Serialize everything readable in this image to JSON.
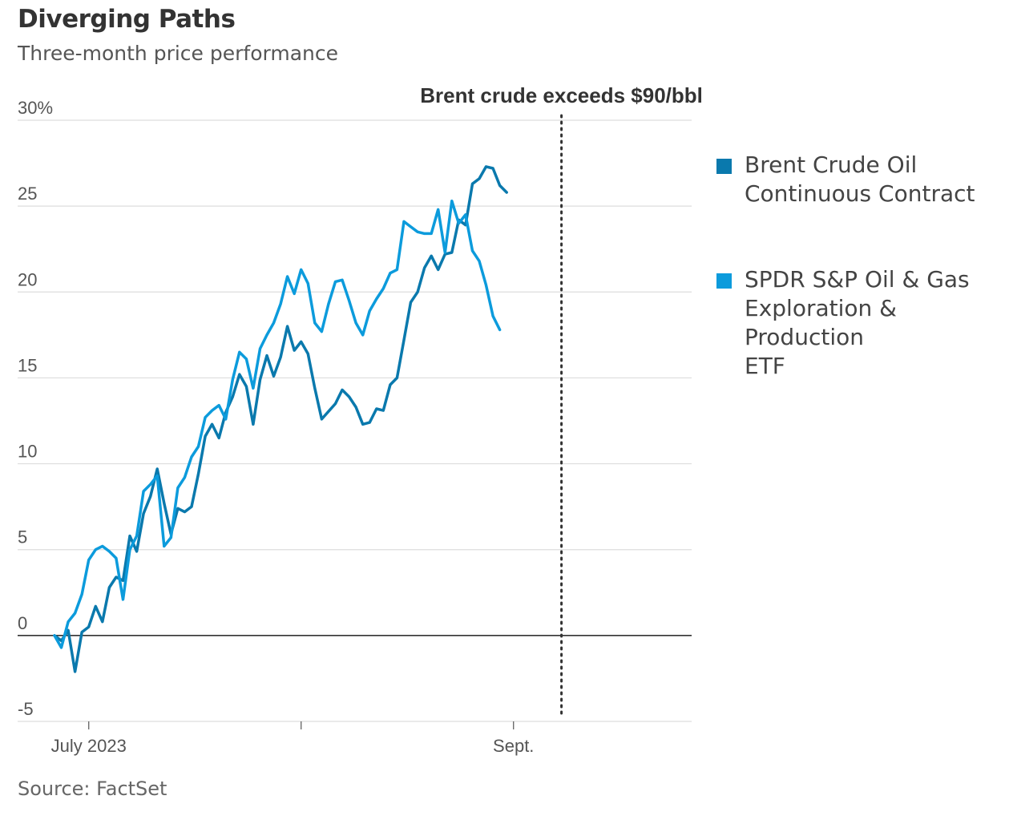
{
  "title": "Diverging Paths",
  "subtitle": "Three-month price performance",
  "source": "Source: FactSet",
  "colors": {
    "brent": "#0a79ad",
    "etf": "#0c9bdc",
    "grid": "#dddddd",
    "zero": "#333333",
    "annotation": "#333333"
  },
  "chart_data": {
    "type": "line",
    "title": "Diverging Paths",
    "subtitle": "Three-month price performance",
    "xlabel": "",
    "ylabel": "",
    "ylim": [
      -5,
      30
    ],
    "yticks": [
      30,
      25,
      20,
      15,
      10,
      5,
      0,
      -5
    ],
    "ytick_labels": [
      "30%",
      "25",
      "20",
      "15",
      "10",
      "5",
      "0",
      "-5"
    ],
    "x_range": [
      "2023-06-26",
      "2023-09-27"
    ],
    "xticks": [
      {
        "date": "2023-07-01",
        "label": "July 2023"
      },
      {
        "date": "2023-08-01",
        "label": ""
      },
      {
        "date": "2023-09-01",
        "label": "Sept."
      }
    ],
    "grid": true,
    "legend_position": "right",
    "annotation": {
      "date": "2023-09-08",
      "label": "Brent crude exceeds $90/bbl"
    },
    "series": [
      {
        "name": "Brent Crude Oil Continuous Contract",
        "color_key": "brent",
        "points": [
          [
            "2023-06-26",
            0.0
          ],
          [
            "2023-06-27",
            -0.3
          ],
          [
            "2023-06-28",
            0.3
          ],
          [
            "2023-06-29",
            -2.1
          ],
          [
            "2023-06-30",
            0.2
          ],
          [
            "2023-07-01",
            0.5
          ],
          [
            "2023-07-02",
            1.7
          ],
          [
            "2023-07-03",
            0.8
          ],
          [
            "2023-07-04",
            2.8
          ],
          [
            "2023-07-05",
            3.4
          ],
          [
            "2023-07-06",
            3.2
          ],
          [
            "2023-07-07",
            5.8
          ],
          [
            "2023-07-08",
            4.9
          ],
          [
            "2023-07-09",
            7.1
          ],
          [
            "2023-07-10",
            8.1
          ],
          [
            "2023-07-11",
            9.7
          ],
          [
            "2023-07-12",
            7.7
          ],
          [
            "2023-07-13",
            5.9
          ],
          [
            "2023-07-14",
            7.4
          ],
          [
            "2023-07-15",
            7.2
          ],
          [
            "2023-07-16",
            7.5
          ],
          [
            "2023-07-17",
            9.4
          ],
          [
            "2023-07-18",
            11.6
          ],
          [
            "2023-07-19",
            12.3
          ],
          [
            "2023-07-20",
            11.5
          ],
          [
            "2023-07-21",
            13.0
          ],
          [
            "2023-07-22",
            13.9
          ],
          [
            "2023-07-23",
            15.2
          ],
          [
            "2023-07-24",
            14.5
          ],
          [
            "2023-07-25",
            12.3
          ],
          [
            "2023-07-26",
            14.9
          ],
          [
            "2023-07-27",
            16.3
          ],
          [
            "2023-07-28",
            15.1
          ],
          [
            "2023-07-29",
            16.2
          ],
          [
            "2023-07-30",
            18.0
          ],
          [
            "2023-07-31",
            16.6
          ],
          [
            "2023-08-01",
            17.1
          ],
          [
            "2023-08-02",
            16.4
          ],
          [
            "2023-08-03",
            14.4
          ],
          [
            "2023-08-04",
            12.6
          ],
          [
            "2023-08-06",
            13.5
          ],
          [
            "2023-08-07",
            14.3
          ],
          [
            "2023-08-08",
            13.9
          ],
          [
            "2023-08-09",
            13.3
          ],
          [
            "2023-08-10",
            12.3
          ],
          [
            "2023-08-11",
            12.4
          ],
          [
            "2023-08-12",
            13.2
          ],
          [
            "2023-08-13",
            13.1
          ],
          [
            "2023-08-14",
            14.6
          ],
          [
            "2023-08-15",
            15.0
          ],
          [
            "2023-08-16",
            17.2
          ],
          [
            "2023-08-17",
            19.4
          ],
          [
            "2023-08-18",
            20.0
          ],
          [
            "2023-08-19",
            21.4
          ],
          [
            "2023-08-20",
            22.1
          ],
          [
            "2023-08-21",
            21.3
          ],
          [
            "2023-08-22",
            22.2
          ],
          [
            "2023-08-23",
            22.3
          ],
          [
            "2023-08-24",
            24.2
          ],
          [
            "2023-08-25",
            23.9
          ],
          [
            "2023-08-26",
            26.3
          ],
          [
            "2023-08-27",
            26.6
          ],
          [
            "2023-08-28",
            27.3
          ],
          [
            "2023-08-29",
            27.2
          ],
          [
            "2023-08-30",
            26.2
          ],
          [
            "2023-08-31",
            25.8
          ]
        ]
      },
      {
        "name": "SPDR S&P Oil & Gas Exploration & Production ETF",
        "color_key": "etf",
        "points": [
          [
            "2023-06-26",
            0.0
          ],
          [
            "2023-06-27",
            -0.7
          ],
          [
            "2023-06-28",
            0.8
          ],
          [
            "2023-06-29",
            1.3
          ],
          [
            "2023-06-30",
            2.4
          ],
          [
            "2023-07-01",
            4.4
          ],
          [
            "2023-07-02",
            5.0
          ],
          [
            "2023-07-03",
            5.2
          ],
          [
            "2023-07-04",
            4.9
          ],
          [
            "2023-07-05",
            4.5
          ],
          [
            "2023-07-06",
            2.1
          ],
          [
            "2023-07-07",
            5.0
          ],
          [
            "2023-07-08",
            5.8
          ],
          [
            "2023-07-09",
            8.4
          ],
          [
            "2023-07-10",
            8.8
          ],
          [
            "2023-07-11",
            9.3
          ],
          [
            "2023-07-12",
            5.2
          ],
          [
            "2023-07-13",
            5.7
          ],
          [
            "2023-07-14",
            8.6
          ],
          [
            "2023-07-15",
            9.2
          ],
          [
            "2023-07-16",
            10.4
          ],
          [
            "2023-07-17",
            11.0
          ],
          [
            "2023-07-18",
            12.7
          ],
          [
            "2023-07-19",
            13.1
          ],
          [
            "2023-07-20",
            13.4
          ],
          [
            "2023-07-21",
            12.6
          ],
          [
            "2023-07-22",
            14.9
          ],
          [
            "2023-07-23",
            16.5
          ],
          [
            "2023-07-24",
            16.1
          ],
          [
            "2023-07-25",
            14.4
          ],
          [
            "2023-07-26",
            16.7
          ],
          [
            "2023-07-27",
            17.5
          ],
          [
            "2023-07-28",
            18.2
          ],
          [
            "2023-07-29",
            19.3
          ],
          [
            "2023-07-30",
            20.9
          ],
          [
            "2023-07-31",
            19.9
          ],
          [
            "2023-08-01",
            21.3
          ],
          [
            "2023-08-02",
            20.5
          ],
          [
            "2023-08-03",
            18.2
          ],
          [
            "2023-08-04",
            17.7
          ],
          [
            "2023-08-05",
            19.3
          ],
          [
            "2023-08-06",
            20.6
          ],
          [
            "2023-08-07",
            20.7
          ],
          [
            "2023-08-08",
            19.5
          ],
          [
            "2023-08-09",
            18.2
          ],
          [
            "2023-08-10",
            17.5
          ],
          [
            "2023-08-11",
            18.9
          ],
          [
            "2023-08-12",
            19.6
          ],
          [
            "2023-08-13",
            20.2
          ],
          [
            "2023-08-14",
            21.1
          ],
          [
            "2023-08-15",
            21.3
          ],
          [
            "2023-08-16",
            24.1
          ],
          [
            "2023-08-17",
            23.8
          ],
          [
            "2023-08-18",
            23.5
          ],
          [
            "2023-08-19",
            23.4
          ],
          [
            "2023-08-20",
            23.4
          ],
          [
            "2023-08-21",
            24.8
          ],
          [
            "2023-08-22",
            22.3
          ],
          [
            "2023-08-23",
            25.3
          ],
          [
            "2023-08-24",
            24.0
          ],
          [
            "2023-08-25",
            24.5
          ],
          [
            "2023-08-26",
            22.4
          ],
          [
            "2023-08-27",
            21.8
          ],
          [
            "2023-08-28",
            20.4
          ],
          [
            "2023-08-29",
            18.6
          ],
          [
            "2023-08-30",
            17.8
          ]
        ],
        "dotted_gaps": [
          [
            "2023-07-03",
            "2023-07-05"
          ],
          [
            "2023-08-16",
            "2023-08-18"
          ]
        ]
      }
    ]
  },
  "legend": [
    {
      "lines": [
        "Brent Crude Oil",
        "Continuous Contract"
      ],
      "color_key": "brent"
    },
    {
      "lines": [
        "SPDR S&P Oil & Gas",
        "Exploration & Production",
        "ETF"
      ],
      "color_key": "etf"
    }
  ]
}
